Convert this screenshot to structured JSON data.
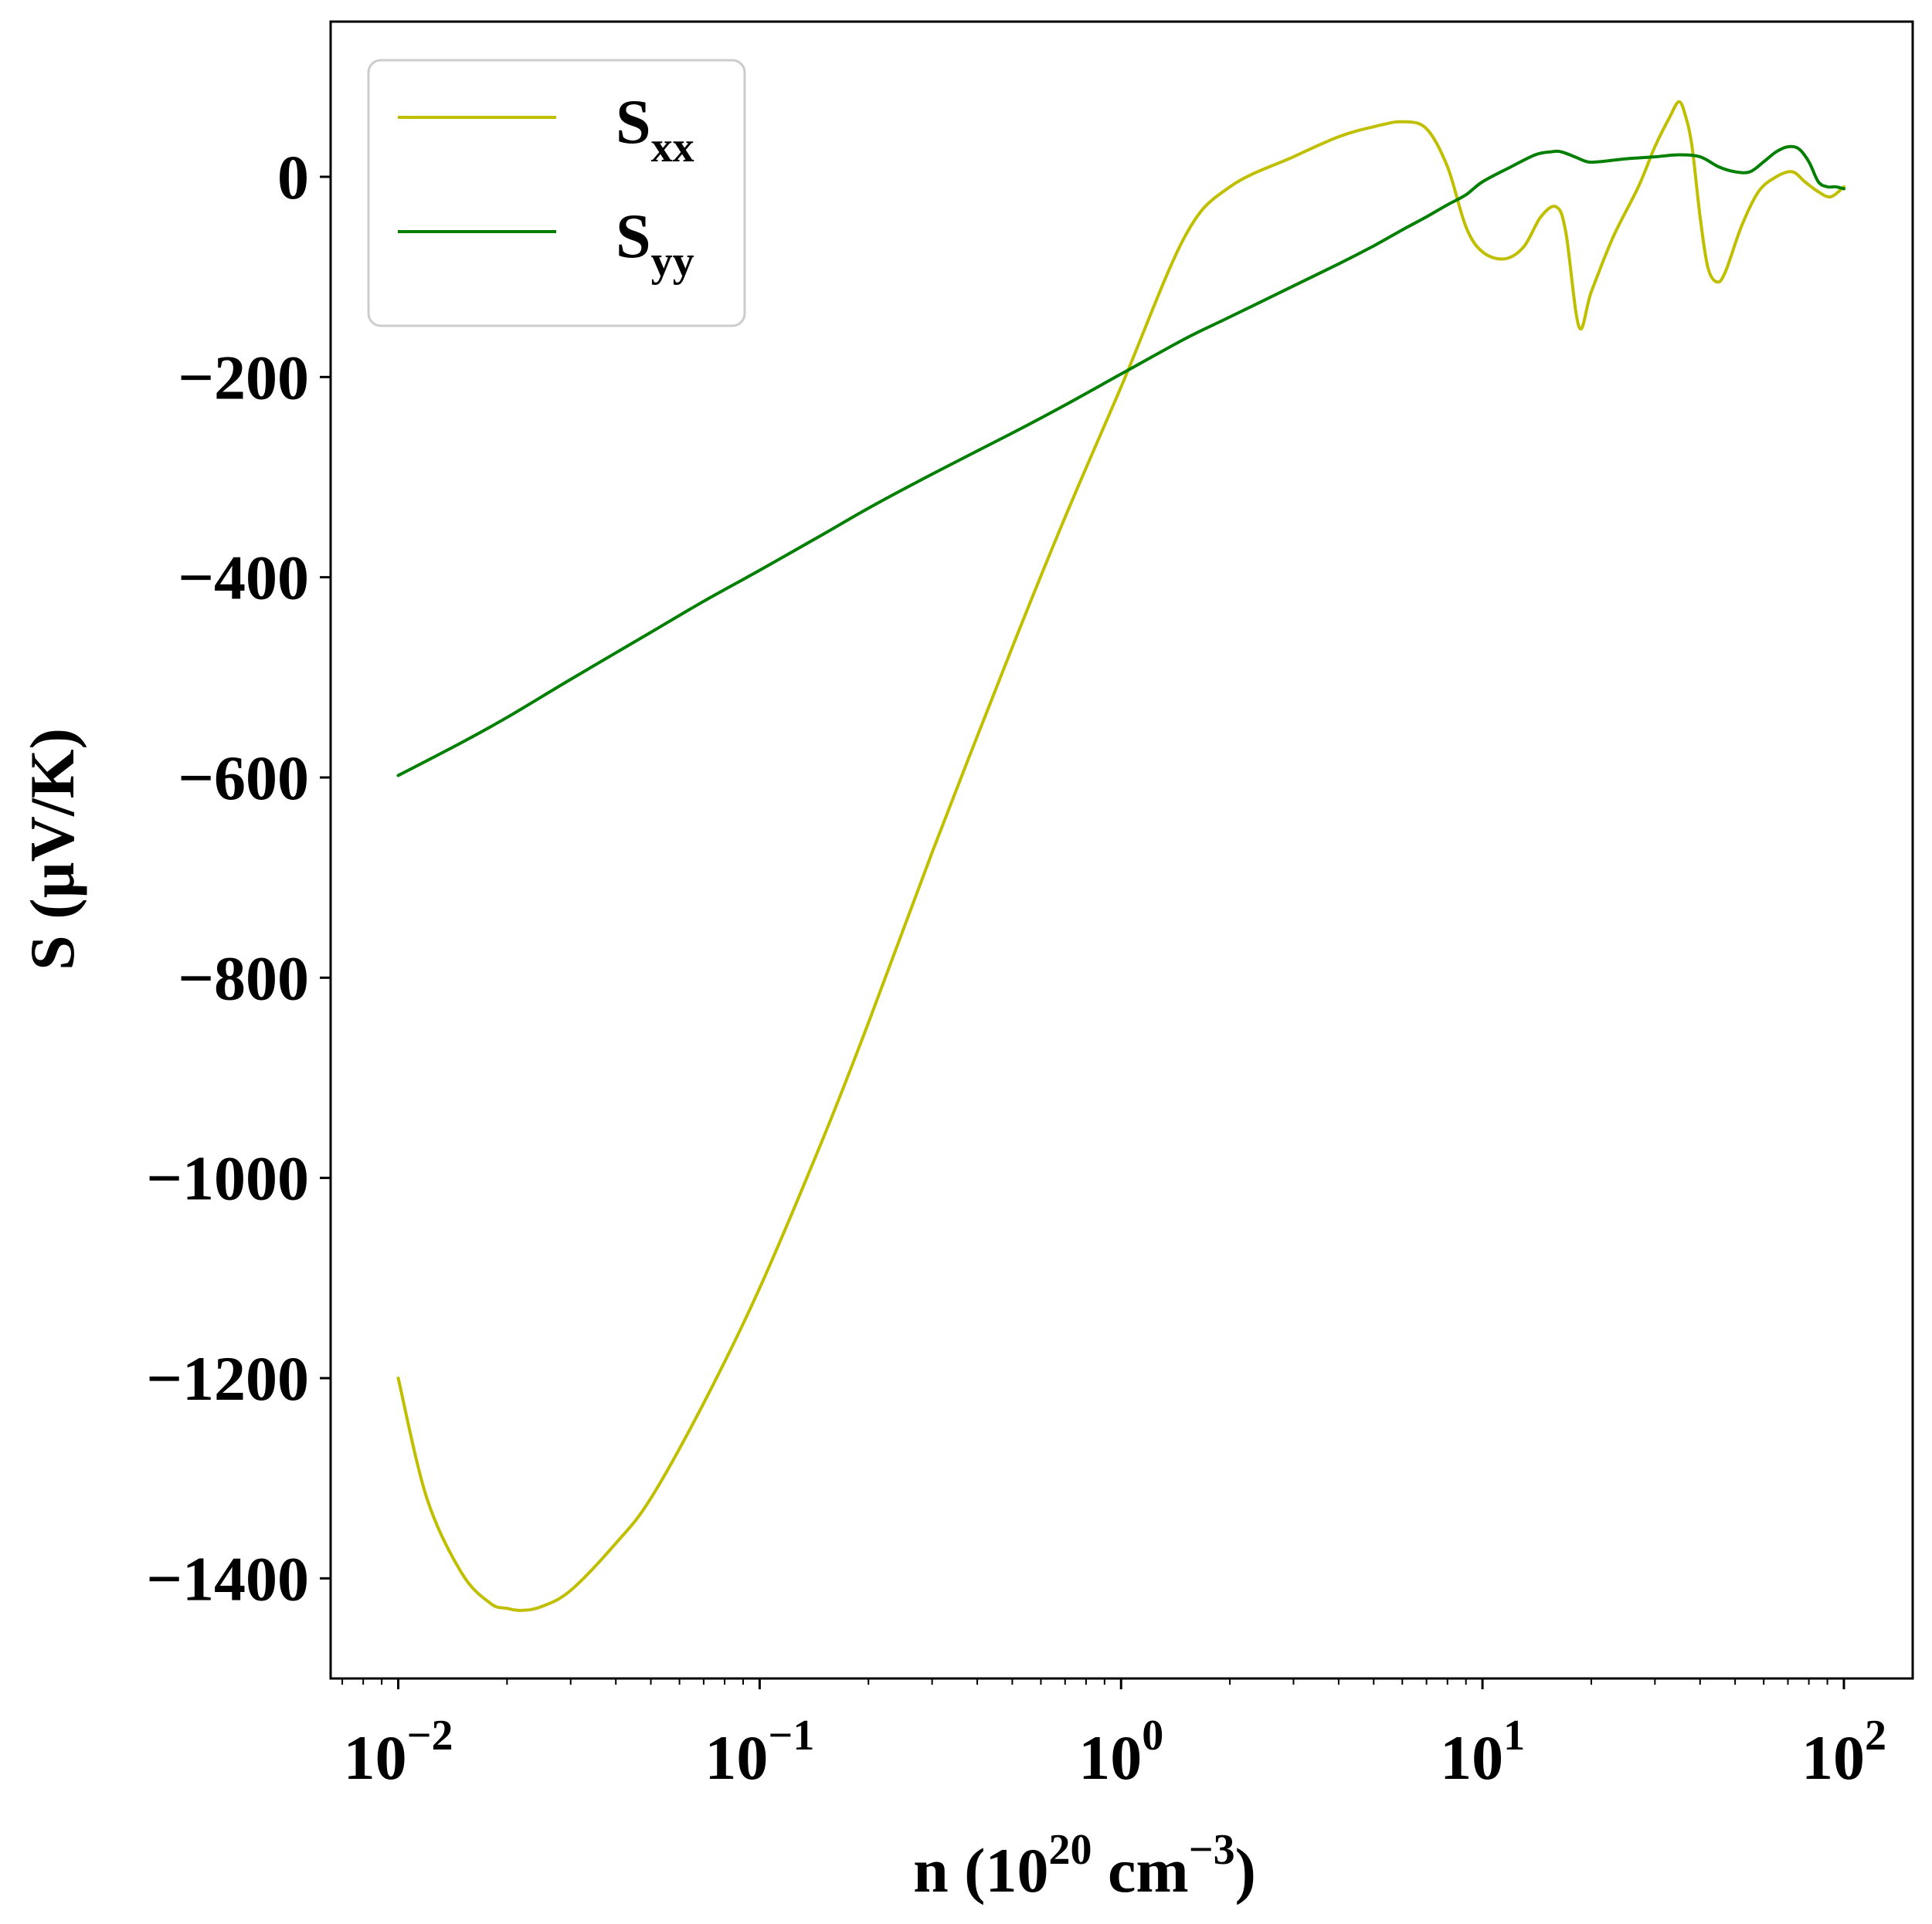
{
  "chart_data": {
    "type": "line",
    "xscale": "log",
    "xlim": [
      0.0065,
      155
    ],
    "ylim": [
      -1500,
      155
    ],
    "grid": false,
    "legend_position": "top-left",
    "xlabel": {
      "base": "n (10",
      "exp1": "20",
      "mid": " cm",
      "exp2": "−3",
      "end": ")"
    },
    "ylabel": "S (µV/K)",
    "xticks": [
      {
        "value": 0.01,
        "base": "10",
        "exp": "−2"
      },
      {
        "value": 0.1,
        "base": "10",
        "exp": "−1"
      },
      {
        "value": 1,
        "base": "10",
        "exp": "0"
      },
      {
        "value": 10,
        "base": "10",
        "exp": "1"
      },
      {
        "value": 100,
        "base": "10",
        "exp": "2"
      }
    ],
    "yticks": [
      {
        "value": 0,
        "label": "0"
      },
      {
        "value": -200,
        "label": "−200"
      },
      {
        "value": -400,
        "label": "−400"
      },
      {
        "value": -600,
        "label": "−600"
      },
      {
        "value": -800,
        "label": "−800"
      },
      {
        "value": -1000,
        "label": "−1000"
      },
      {
        "value": -1200,
        "label": "−1200"
      },
      {
        "value": -1400,
        "label": "−1400"
      }
    ],
    "series": [
      {
        "name": "S_xx",
        "label_base": "S",
        "label_sub": "xx",
        "color": "#bfbf00",
        "x": [
          0.01,
          0.012,
          0.015,
          0.018,
          0.02,
          0.022,
          0.025,
          0.03,
          0.04,
          0.05,
          0.07,
          0.1,
          0.15,
          0.2,
          0.3,
          0.5,
          0.7,
          1.0,
          1.5,
          2.0,
          3.0,
          4.0,
          5.0,
          6.0,
          7.0,
          8.0,
          9.0,
          10.0,
          11.5,
          13.0,
          14.5,
          16.0,
          17.0,
          18.5,
          20.0,
          23.0,
          27.0,
          30.0,
          33.0,
          35.0,
          36.5,
          38.0,
          40.0,
          42.0,
          44.5,
          47.0,
          52.0,
          58.0,
          65.0,
          72.0,
          78.0,
          85.0,
          92.0,
          100.0
        ],
        "y": [
          -1200,
          -1320,
          -1395,
          -1425,
          -1430,
          -1432,
          -1428,
          -1412,
          -1365,
          -1320,
          -1225,
          -1110,
          -960,
          -845,
          -675,
          -470,
          -340,
          -210,
          -60,
          -10,
          20,
          40,
          50,
          55,
          48,
          10,
          -50,
          -75,
          -82,
          -70,
          -40,
          -30,
          -55,
          -150,
          -115,
          -60,
          -10,
          30,
          60,
          75,
          60,
          30,
          -40,
          -90,
          -105,
          -95,
          -50,
          -15,
          0,
          5,
          -5,
          -15,
          -20,
          -10
        ]
      },
      {
        "name": "S_yy",
        "label_base": "S",
        "label_sub": "yy",
        "color": "#007f00",
        "x": [
          0.01,
          0.015,
          0.02,
          0.03,
          0.05,
          0.07,
          0.1,
          0.15,
          0.2,
          0.3,
          0.5,
          0.7,
          1.0,
          1.5,
          2.0,
          3.0,
          4.0,
          5.0,
          6.0,
          7.0,
          8.0,
          9.0,
          10.0,
          12.0,
          14.0,
          15.5,
          16.5,
          18.0,
          19.5,
          21.0,
          25.0,
          30.0,
          35.0,
          40.0,
          45.0,
          50.0,
          55.0,
          60.0,
          65.0,
          70.0,
          75.0,
          80.0,
          85.0,
          90.0,
          95.0,
          100.0
        ],
        "y": [
          -598,
          -565,
          -540,
          -502,
          -455,
          -424,
          -393,
          -357,
          -331,
          -297,
          -256,
          -228,
          -197,
          -162,
          -140,
          -109,
          -87,
          -69,
          -53,
          -40,
          -28,
          -18,
          -5,
          10,
          22,
          25,
          25,
          20,
          15,
          15,
          18,
          20,
          22,
          20,
          10,
          5,
          5,
          15,
          25,
          30,
          28,
          15,
          -5,
          -10,
          -10,
          -12
        ]
      }
    ]
  }
}
